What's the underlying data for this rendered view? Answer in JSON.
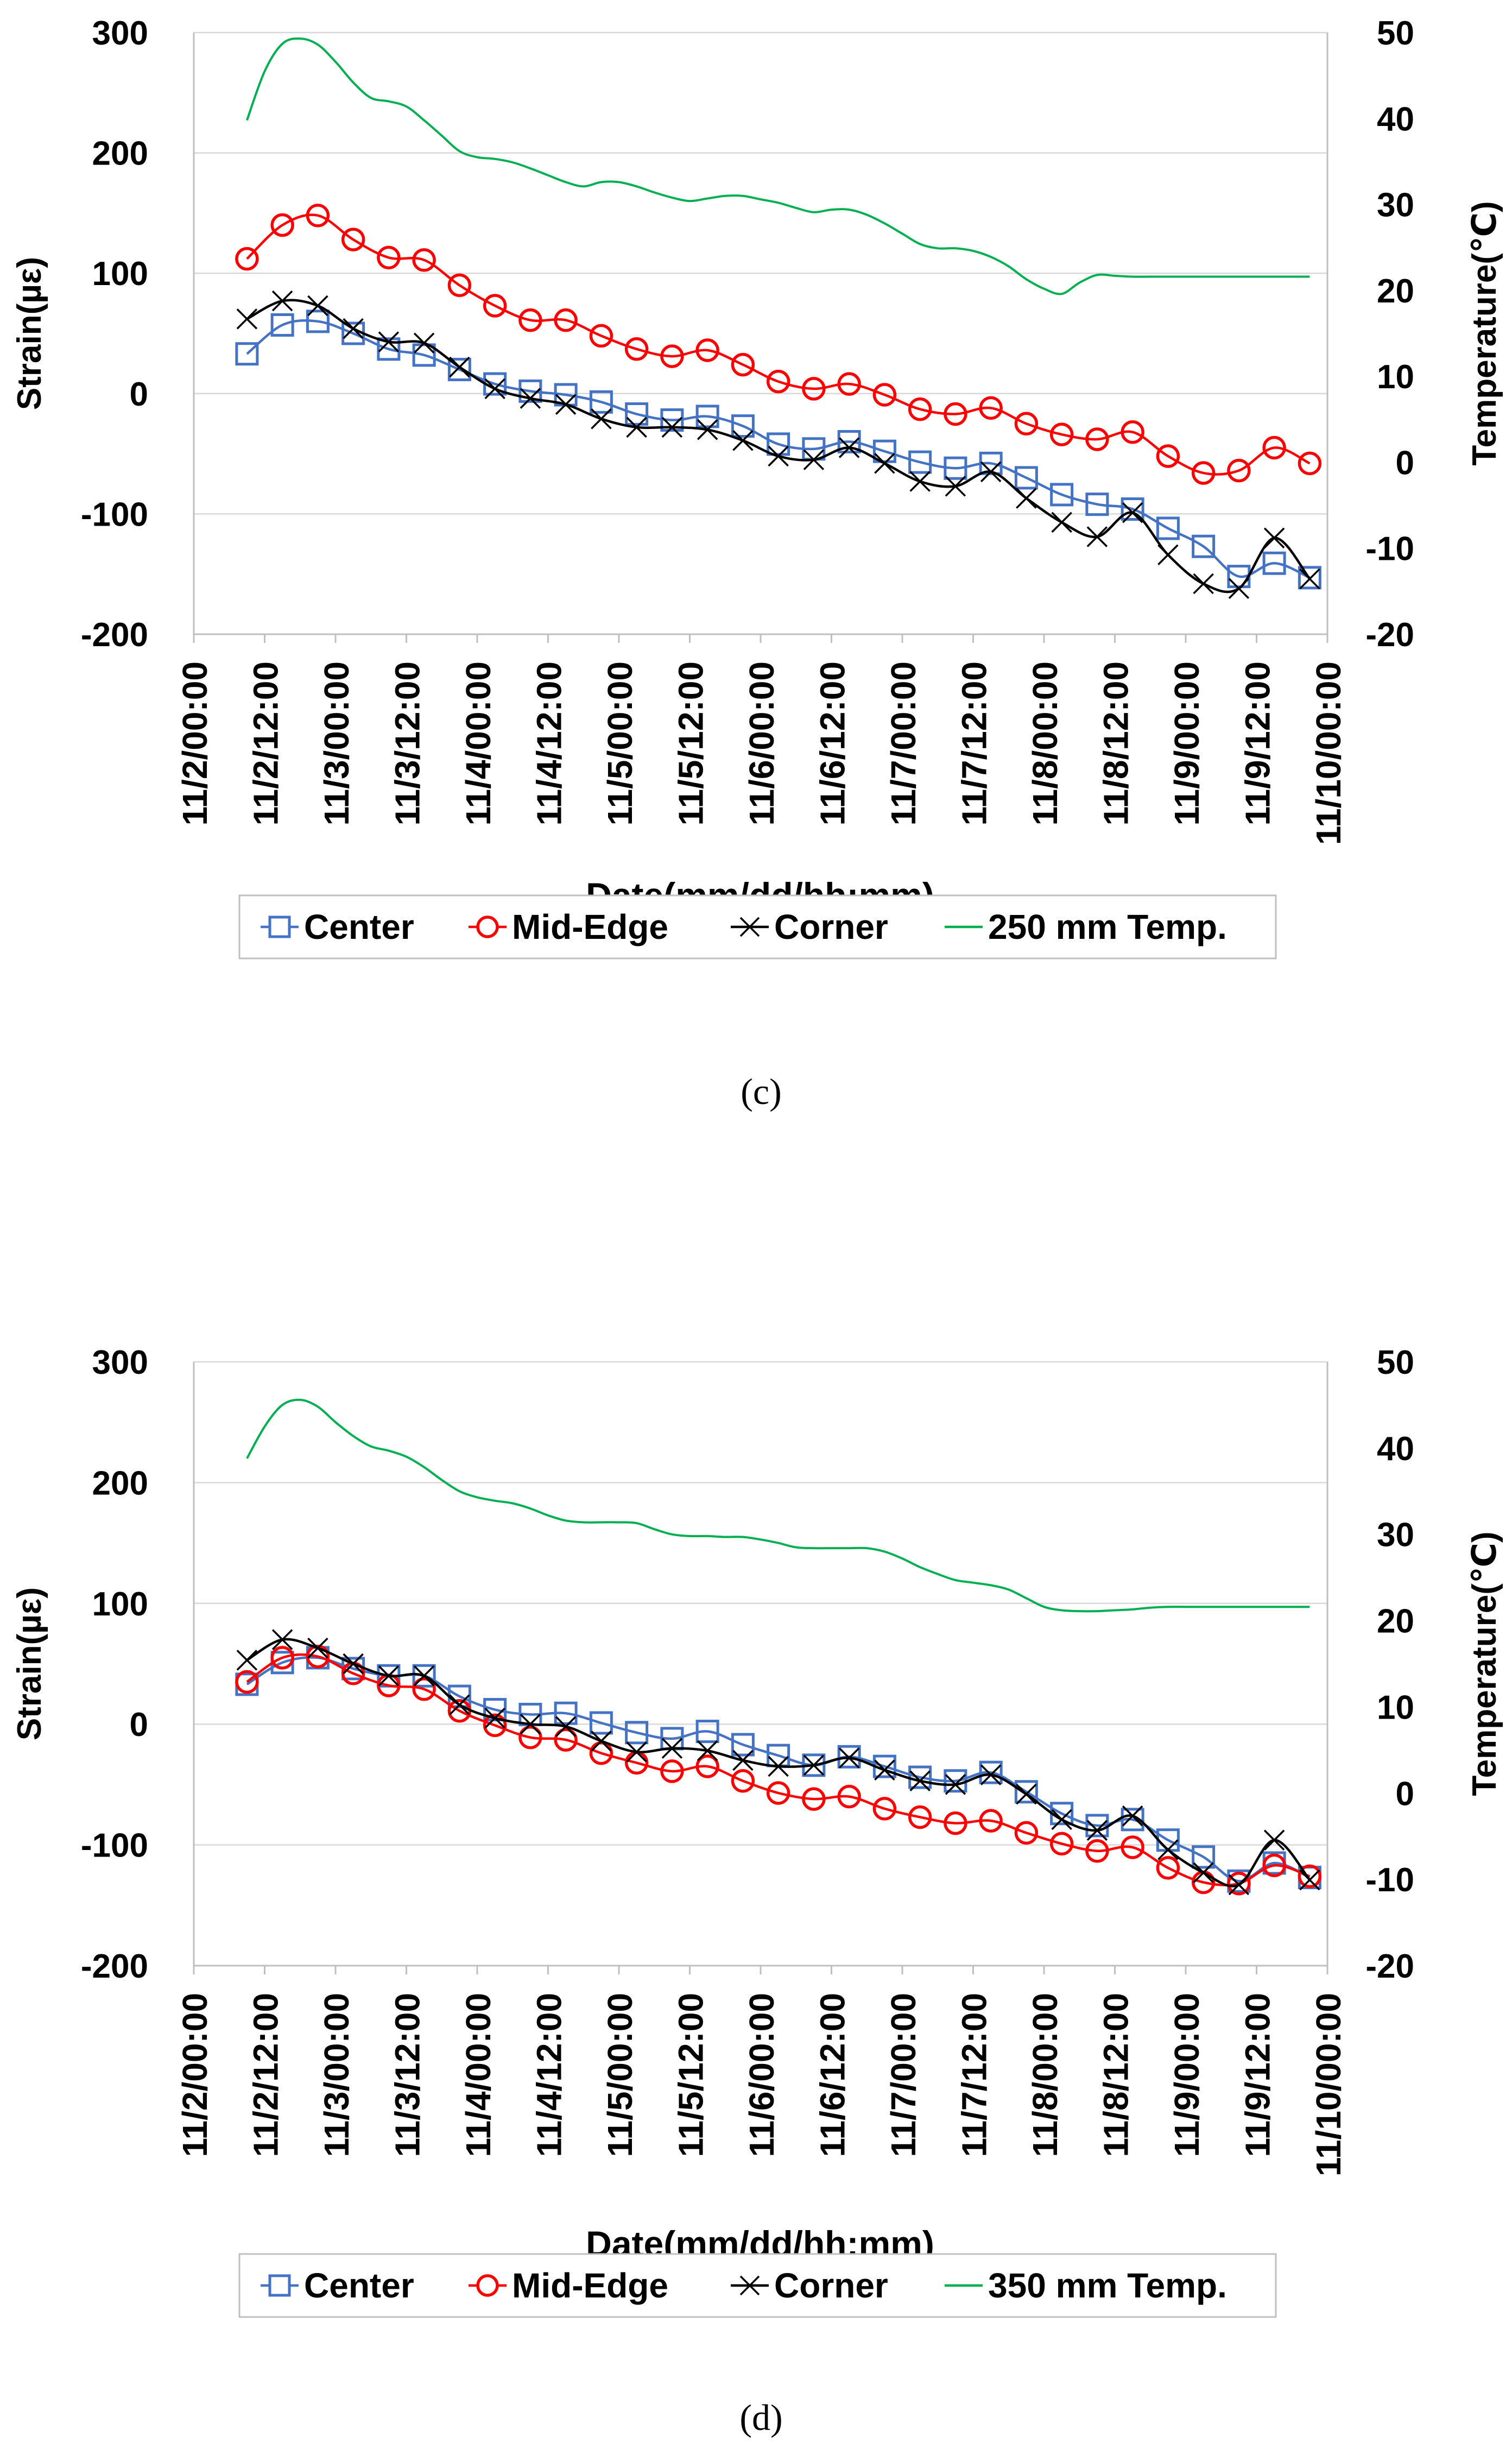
{
  "colors": {
    "center": "#4472C4",
    "mid_edge": "#FF0000",
    "corner": "#000000",
    "temp": "#00B050",
    "grid": "#D9D9D9",
    "axis": "#BFBFBF"
  },
  "chart_data": [
    {
      "type": "line",
      "panel": "c",
      "caption": "(c)",
      "xlabel": "Date(mm/dd/hh:mm)",
      "ylabel": "Strain(µε)",
      "y2label": "Temperature(℃)",
      "ylim": [
        -200,
        300
      ],
      "y2lim": [
        -20,
        50
      ],
      "yticks": [
        "300",
        "200",
        "100",
        "0",
        "-100",
        "-200"
      ],
      "y2ticks": [
        "50",
        "40",
        "30",
        "20",
        "10",
        "0",
        "-10",
        "-20"
      ],
      "x_tick_labels": [
        "11/2/00:00",
        "11/2/12:00",
        "11/3/00:00",
        "11/3/12:00",
        "11/4/00:00",
        "11/4/12:00",
        "11/5/00:00",
        "11/5/12:00",
        "11/6/00:00",
        "11/6/12:00",
        "11/7/00:00",
        "11/7/12:00",
        "11/8/00:00",
        "11/8/12:00",
        "11/9/00:00",
        "11/9/12:00",
        "11/10/00:00"
      ],
      "legend": [
        "Center",
        "Mid-Edge",
        "Corner",
        "250 mm Temp."
      ],
      "x_hours": [
        9,
        15,
        21,
        27,
        33,
        39,
        45,
        51,
        57,
        63,
        69,
        75,
        81,
        87,
        93,
        99,
        105,
        111,
        117,
        123,
        129,
        135,
        141,
        147,
        153,
        159,
        165,
        171,
        177,
        183,
        189
      ],
      "series": [
        {
          "name": "Center",
          "values": [
            33,
            57,
            60,
            50,
            37,
            32,
            20,
            8,
            2,
            -1,
            -7,
            -17,
            -22,
            -19,
            -27,
            -42,
            -46,
            -40,
            -48,
            -57,
            -62,
            -58,
            -70,
            -84,
            -92,
            -96,
            -112,
            -127,
            -152,
            -141,
            -153
          ]
        },
        {
          "name": "Mid-Edge",
          "values": [
            112,
            140,
            148,
            128,
            113,
            111,
            90,
            73,
            61,
            61,
            48,
            37,
            31,
            36,
            24,
            10,
            4,
            8,
            -1,
            -13,
            -17,
            -12,
            -25,
            -34,
            -38,
            -32,
            -52,
            -66,
            -64,
            -45,
            -58
          ]
        },
        {
          "name": "Corner",
          "values": [
            62,
            77,
            73,
            54,
            43,
            42,
            22,
            4,
            -4,
            -9,
            -21,
            -28,
            -28,
            -30,
            -39,
            -52,
            -55,
            -45,
            -58,
            -73,
            -77,
            -65,
            -87,
            -107,
            -119,
            -99,
            -134,
            -158,
            -162,
            -120,
            -154
          ]
        }
      ],
      "temperature": {
        "name": "250 mm Temp.",
        "x_hours": [
          9,
          12,
          15,
          18,
          21,
          24,
          27,
          30,
          33,
          36,
          39,
          42,
          45,
          48,
          51,
          54,
          57,
          60,
          63,
          66,
          69,
          72,
          75,
          78,
          81,
          84,
          87,
          90,
          93,
          96,
          99,
          102,
          105,
          108,
          111,
          114,
          117,
          120,
          123,
          126,
          129,
          132,
          135,
          138,
          141,
          144,
          147,
          150,
          153,
          156,
          159,
          162,
          165,
          168,
          171,
          174,
          177,
          180,
          183,
          186,
          189
        ],
        "values": [
          39.8,
          45.5,
          48.7,
          49.3,
          48.6,
          46.6,
          44.2,
          42.4,
          42.0,
          41.4,
          39.8,
          38.0,
          36.2,
          35.5,
          35.3,
          34.9,
          34.2,
          33.4,
          32.6,
          32.1,
          32.6,
          32.6,
          32.1,
          31.4,
          30.8,
          30.4,
          30.7,
          31.0,
          31.0,
          30.6,
          30.2,
          29.6,
          29.1,
          29.4,
          29.4,
          28.8,
          27.8,
          26.6,
          25.4,
          24.9,
          24.9,
          24.6,
          23.9,
          22.8,
          21.3,
          20.2,
          19.6,
          20.9,
          21.8,
          21.7,
          21.6,
          21.6,
          21.6,
          21.6,
          21.6,
          21.6,
          21.6,
          21.6,
          21.6,
          21.6,
          21.6
        ]
      }
    },
    {
      "type": "line",
      "panel": "d",
      "caption": "(d)",
      "xlabel": "Date(mm/dd/hh:mm)",
      "ylabel": "Strain(µε)",
      "y2label": "Temperature(℃)",
      "ylim": [
        -200,
        300
      ],
      "y2lim": [
        -20,
        50
      ],
      "yticks": [
        "300",
        "200",
        "100",
        "0",
        "-100",
        "-200"
      ],
      "y2ticks": [
        "50",
        "40",
        "30",
        "20",
        "10",
        "0",
        "-10",
        "-20"
      ],
      "x_tick_labels": [
        "11/2/00:00",
        "11/2/12:00",
        "11/3/00:00",
        "11/3/12:00",
        "11/4/00:00",
        "11/4/12:00",
        "11/5/00:00",
        "11/5/12:00",
        "11/6/00:00",
        "11/6/12:00",
        "11/7/00:00",
        "11/7/12:00",
        "11/8/00:00",
        "11/8/12:00",
        "11/9/00:00",
        "11/9/12:00",
        "11/10/00:00"
      ],
      "legend": [
        "Center",
        "Mid-Edge",
        "Corner",
        "350 mm Temp."
      ],
      "x_hours": [
        9,
        15,
        21,
        27,
        33,
        39,
        45,
        51,
        57,
        63,
        69,
        75,
        81,
        87,
        93,
        99,
        105,
        111,
        117,
        123,
        129,
        135,
        141,
        147,
        153,
        159,
        165,
        171,
        177,
        183,
        189
      ],
      "series": [
        {
          "name": "Center",
          "values": [
            33,
            51,
            55,
            46,
            40,
            40,
            23,
            12,
            8,
            9,
            1,
            -7,
            -12,
            -6,
            -17,
            -26,
            -34,
            -27,
            -35,
            -44,
            -47,
            -40,
            -56,
            -74,
            -84,
            -79,
            -96,
            -110,
            -130,
            -115,
            -127
          ]
        },
        {
          "name": "Mid-Edge",
          "values": [
            35,
            55,
            56,
            42,
            32,
            29,
            11,
            -1,
            -11,
            -13,
            -24,
            -32,
            -39,
            -35,
            -47,
            -57,
            -62,
            -60,
            -70,
            -77,
            -82,
            -80,
            -90,
            -99,
            -105,
            -102,
            -119,
            -131,
            -132,
            -117,
            -126
          ]
        },
        {
          "name": "Corner",
          "values": [
            53,
            70,
            63,
            50,
            40,
            40,
            16,
            5,
            0,
            -2,
            -14,
            -23,
            -20,
            -22,
            -30,
            -35,
            -34,
            -28,
            -38,
            -47,
            -50,
            -42,
            -58,
            -79,
            -88,
            -76,
            -104,
            -123,
            -133,
            -96,
            -129
          ]
        }
      ],
      "temperature": {
        "name": "350 mm Temp.",
        "x_hours": [
          9,
          12,
          15,
          18,
          21,
          24,
          27,
          30,
          33,
          36,
          39,
          42,
          45,
          48,
          51,
          54,
          57,
          60,
          63,
          66,
          69,
          72,
          75,
          78,
          81,
          84,
          87,
          90,
          93,
          96,
          99,
          102,
          105,
          108,
          111,
          114,
          117,
          120,
          123,
          126,
          129,
          132,
          135,
          138,
          141,
          144,
          147,
          150,
          153,
          156,
          159,
          162,
          165,
          168,
          171,
          174,
          177,
          180,
          183,
          186,
          189
        ],
        "values": [
          38.8,
          42.5,
          45.0,
          45.6,
          44.8,
          43.0,
          41.4,
          40.2,
          39.7,
          39.0,
          37.8,
          36.3,
          35.0,
          34.3,
          33.9,
          33.6,
          33.0,
          32.2,
          31.6,
          31.4,
          31.4,
          31.4,
          31.3,
          30.6,
          30.0,
          29.8,
          29.8,
          29.7,
          29.7,
          29.4,
          29.0,
          28.5,
          28.4,
          28.4,
          28.4,
          28.4,
          28.0,
          27.2,
          26.2,
          25.4,
          24.7,
          24.4,
          24.1,
          23.6,
          22.6,
          21.6,
          21.2,
          21.1,
          21.1,
          21.2,
          21.3,
          21.5,
          21.6,
          21.6,
          21.6,
          21.6,
          21.6,
          21.6,
          21.6,
          21.6,
          21.6
        ]
      }
    }
  ]
}
